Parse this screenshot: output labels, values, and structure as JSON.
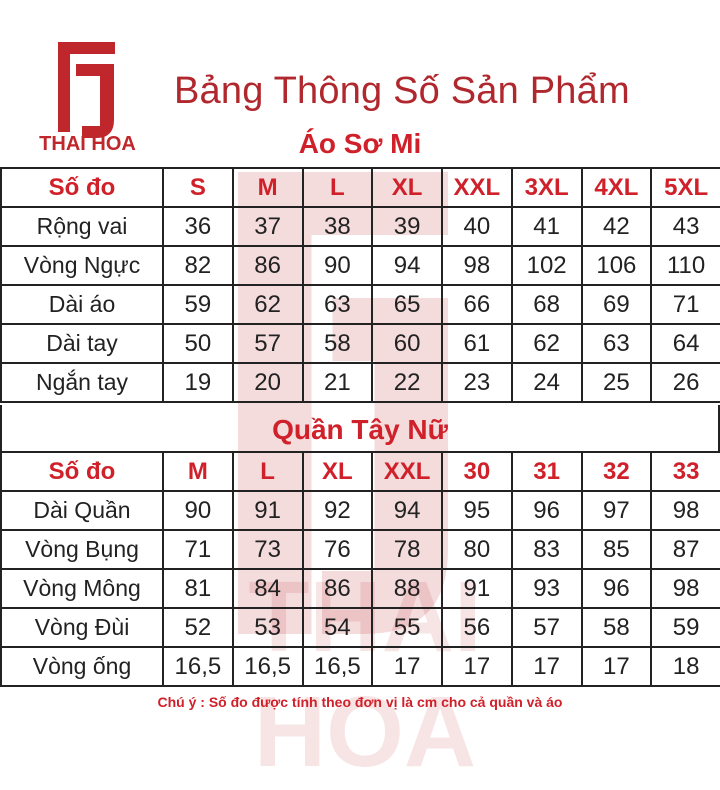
{
  "brand": {
    "name": "THAI HOA",
    "color": "#c0272d"
  },
  "title": "Bảng Thông Số Sản Phẩm",
  "shirt": {
    "title": "Áo Sơ Mi",
    "headers": [
      "Số đo",
      "S",
      "M",
      "L",
      "XL",
      "XXL",
      "3XL",
      "4XL",
      "5XL"
    ],
    "rows": [
      [
        "Rộng vai",
        "36",
        "37",
        "38",
        "39",
        "40",
        "41",
        "42",
        "43"
      ],
      [
        "Vòng Ngực",
        "82",
        "86",
        "90",
        "94",
        "98",
        "102",
        "106",
        "110"
      ],
      [
        "Dài áo",
        "59",
        "62",
        "63",
        "65",
        "66",
        "68",
        "69",
        "71"
      ],
      [
        "Dài tay",
        "50",
        "57",
        "58",
        "60",
        "61",
        "62",
        "63",
        "64"
      ],
      [
        "Ngắn tay",
        "19",
        "20",
        "21",
        "22",
        "23",
        "24",
        "25",
        "26"
      ]
    ]
  },
  "pants": {
    "title": "Quần Tây Nữ",
    "headers": [
      "Số đo",
      "M",
      "L",
      "XL",
      "XXL",
      "30",
      "31",
      "32",
      "33"
    ],
    "rows": [
      [
        "Dài Quần",
        "90",
        "91",
        "92",
        "94",
        "95",
        "96",
        "97",
        "98"
      ],
      [
        "Vòng Bụng",
        "71",
        "73",
        "76",
        "78",
        "80",
        "83",
        "85",
        "87"
      ],
      [
        "Vòng Mông",
        "81",
        "84",
        "86",
        "88",
        "91",
        "93",
        "96",
        "98"
      ],
      [
        "Vòng Đùi",
        "52",
        "53",
        "54",
        "55",
        "56",
        "57",
        "58",
        "59"
      ],
      [
        "Vòng ống",
        "16,5",
        "16,5",
        "16,5",
        "17",
        "17",
        "17",
        "17",
        "18"
      ]
    ]
  },
  "note": "Chú ý : Số đo được tính theo đơn vị là cm cho cả quần và áo"
}
